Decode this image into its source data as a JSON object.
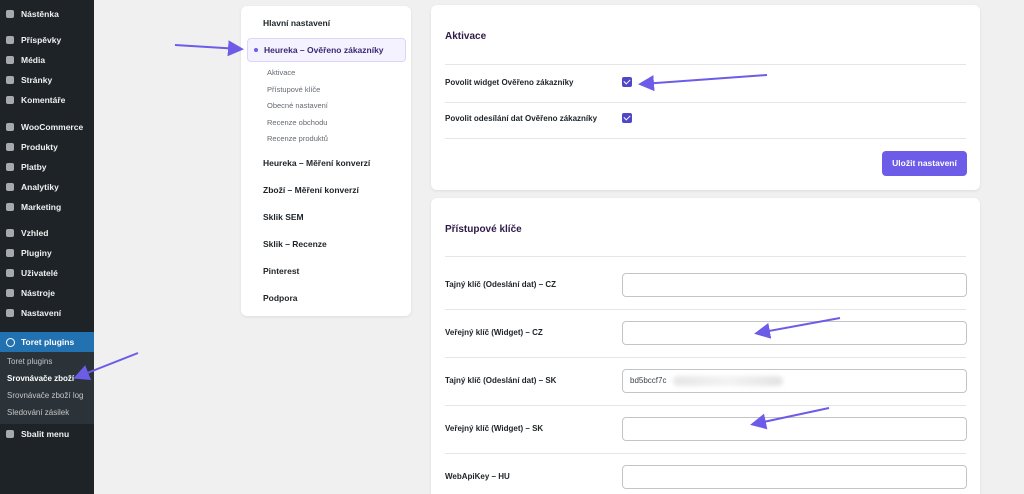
{
  "sidebar": {
    "items": [
      "Nástěnka",
      "Příspěvky",
      "Média",
      "Stránky",
      "Komentáře",
      "WooCommerce",
      "Produkty",
      "Platby",
      "Analytiky",
      "Marketing",
      "Vzhled",
      "Pluginy",
      "Uživatelé",
      "Nástroje",
      "Nastavení"
    ],
    "active": "Toret plugins",
    "submenu": [
      "Toret plugins",
      "Srovnávače zboží",
      "Srovnávače zboží log",
      "Sledování zásilek"
    ],
    "collapse": "Sbalit menu"
  },
  "settings_nav": {
    "items_before": [
      "Hlavní nastavení"
    ],
    "active": "Heureka – Ověřeno zákazníky",
    "subitems": [
      "Aktivace",
      "Přístupové klíče",
      "Obecné nastavení",
      "Recenze obchodu",
      "Recenze produktů"
    ],
    "items_after": [
      "Heureka – Měření konverzí",
      "Zboží – Měření konverzí",
      "Sklik SEM",
      "Sklik – Recenze",
      "Pinterest",
      "Podpora"
    ]
  },
  "activation": {
    "title": "Aktivace",
    "fields": [
      {
        "label": "Povolit widget Ověřeno zákazníky",
        "checked": true
      },
      {
        "label": "Povolit odesílání dat Ověřeno zákazníky",
        "checked": true
      }
    ],
    "button": "Uložit nastavení"
  },
  "keys": {
    "title": "Přístupové klíče",
    "fields": [
      {
        "label": "Tajný klíč (Odeslání dat) – CZ"
      },
      {
        "label": "Veřejný klíč (Widget) – CZ"
      },
      {
        "label": "Tajný klíč (Odeslání dat) – SK",
        "value": "bd5bccf7c"
      },
      {
        "label": "Veřejný klíč (Widget) – SK"
      },
      {
        "label": "WebApiKey – HU"
      }
    ]
  }
}
